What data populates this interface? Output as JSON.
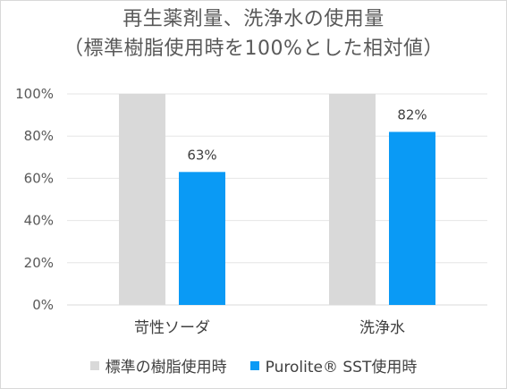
{
  "chart_data": {
    "type": "bar",
    "title": [
      "再生薬剤量、洗浄水の使用量",
      "（標準樹脂使用時を100%とした相対値）"
    ],
    "categories": [
      "苛性ソーダ",
      "洗浄水"
    ],
    "series": [
      {
        "name": "標準の樹脂使用時",
        "values": [
          100,
          100
        ],
        "color": "#d9d9d9",
        "labels": [
          "",
          ""
        ]
      },
      {
        "name": "Purolite® SST使用時",
        "values": [
          63,
          82
        ],
        "color": "#0a9af5",
        "labels": [
          "63%",
          "82%"
        ]
      }
    ],
    "ylim": [
      0,
      100
    ],
    "yticks": [
      "0%",
      "20%",
      "40%",
      "60%",
      "80%",
      "100%"
    ],
    "ytick_values": [
      0,
      20,
      40,
      60,
      80,
      100
    ],
    "grid": true,
    "legend_position": "bottom"
  }
}
